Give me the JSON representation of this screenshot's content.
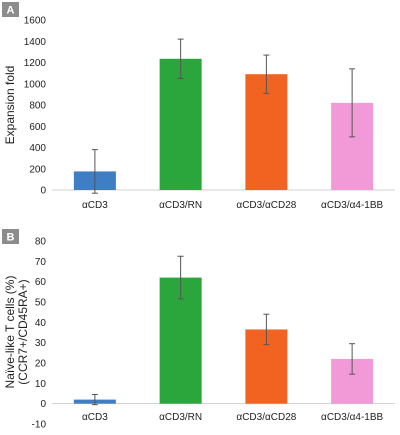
{
  "chart_data": [
    {
      "type": "bar",
      "panel_label": "A",
      "categories": [
        "αCD3",
        "αCD3/RN",
        "αCD3/αCD28",
        "αCD3/α4-1BB"
      ],
      "values": [
        175,
        1235,
        1090,
        820
      ],
      "errors": [
        205,
        185,
        180,
        320
      ],
      "colors": [
        "#3f7dc4",
        "#2aa63d",
        "#f26322",
        "#f29ad8"
      ],
      "ylabel": "Expansion fold",
      "ylabel_lines": [
        "Expansion fold"
      ],
      "ylim": [
        0,
        1600
      ],
      "yticks": [
        0,
        200,
        400,
        600,
        800,
        1000,
        1200,
        1400,
        1600
      ],
      "grid": false
    },
    {
      "type": "bar",
      "panel_label": "B",
      "categories": [
        "αCD3",
        "αCD3/RN",
        "αCD3/αCD28",
        "αCD3/α4-1BB"
      ],
      "values": [
        2,
        62,
        36.5,
        22
      ],
      "errors": [
        2.5,
        10.5,
        7.5,
        7.5
      ],
      "colors": [
        "#3f7dc4",
        "#2aa63d",
        "#f26322",
        "#f29ad8"
      ],
      "ylabel": "Naïve-like T cells (%) (CCR7+/CD45RA+)",
      "ylabel_lines": [
        "Naïve-like T cells (%)",
        "(CCR7+/CD45RA+)"
      ],
      "ylim": [
        -10,
        80
      ],
      "yticks": [
        -10,
        0,
        10,
        20,
        30,
        40,
        50,
        60,
        70,
        80
      ],
      "grid": false
    }
  ]
}
